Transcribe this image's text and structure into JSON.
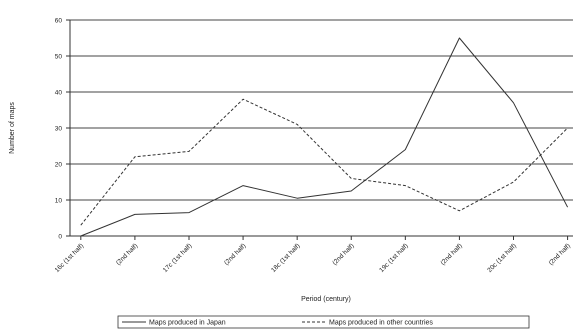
{
  "chart_data": {
    "type": "line",
    "categories": [
      "16c (1st half)",
      "(2nd half)",
      "17c (1st half)",
      "(2nd half)",
      "18c (1st half)",
      "(2nd half)",
      "19c (1st half)",
      "(2nd half)",
      "20c (1st half)",
      "(2nd half)"
    ],
    "series": [
      {
        "name": "Maps produced in Japan",
        "values": [
          0,
          6,
          6.5,
          14,
          10.5,
          12.5,
          24,
          55,
          37,
          8
        ],
        "color": "#333333",
        "dash": "solid"
      },
      {
        "name": "Maps produced in other countries",
        "values": [
          3,
          22,
          23.5,
          38,
          31,
          16,
          14,
          7,
          15,
          30
        ],
        "color": "#333333",
        "dash": "dashed"
      }
    ],
    "xlabel": "Period (century)",
    "ylabel": "Number of maps",
    "ylim": [
      0,
      60
    ],
    "yticks": [
      0,
      10,
      20,
      30,
      40,
      50,
      60
    ],
    "grid": true,
    "legend_position": "bottom"
  }
}
